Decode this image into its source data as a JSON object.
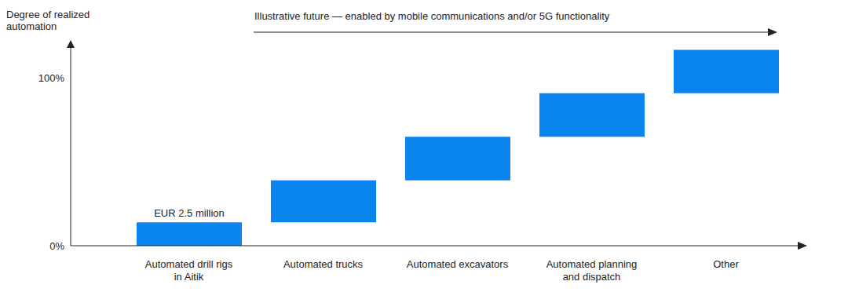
{
  "chart_data": {
    "type": "waterfall",
    "y_label": "Degree of realized automation",
    "annotations": [
      {
        "text": "Illustrative future — enabled by mobile communications and/or 5G functionality"
      },
      {
        "text": "EUR 2.5 million",
        "category": "Automated drill rigs in Aitik"
      }
    ],
    "categories": [
      "Automated drill rigs in Aitik",
      "Automated trucks",
      "Automated excavators",
      "Automated planning and dispatch",
      "Other"
    ],
    "values": [
      14,
      25,
      26,
      26,
      26
    ],
    "color": "#0a84ee",
    "ylim": [
      0,
      120
    ],
    "yticks": [
      {
        "value": 0,
        "label": "0%"
      },
      {
        "value": 100,
        "label": "100%"
      }
    ],
    "grid": false
  }
}
